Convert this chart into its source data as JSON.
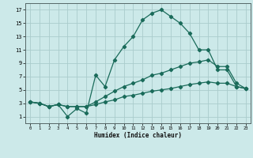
{
  "title": "",
  "xlabel": "Humidex (Indice chaleur)",
  "bg_color": "#cce9e9",
  "grid_color": "#aacccc",
  "line_color": "#1a6b5a",
  "xlim": [
    -0.5,
    23.5
  ],
  "ylim": [
    0,
    18
  ],
  "xticks": [
    0,
    1,
    2,
    3,
    4,
    5,
    6,
    7,
    8,
    9,
    10,
    11,
    12,
    13,
    14,
    15,
    16,
    17,
    18,
    19,
    20,
    21,
    22,
    23
  ],
  "yticks": [
    1,
    3,
    5,
    7,
    9,
    11,
    13,
    15,
    17
  ],
  "lines": [
    {
      "x": [
        0,
        1,
        2,
        3,
        4,
        5,
        6,
        7,
        8,
        9,
        10,
        11,
        12,
        13,
        14,
        15,
        16,
        17,
        18,
        19,
        20,
        21,
        22,
        23
      ],
      "y": [
        3.2,
        3.0,
        2.5,
        2.8,
        1.0,
        2.2,
        1.5,
        7.2,
        5.5,
        9.5,
        11.5,
        13.0,
        15.5,
        16.5,
        17.0,
        16.0,
        15.0,
        13.5,
        11.0,
        11.0,
        8.0,
        8.0,
        5.5,
        5.2
      ]
    },
    {
      "x": [
        0,
        1,
        2,
        3,
        4,
        5,
        6,
        7,
        8,
        9,
        10,
        11,
        12,
        13,
        14,
        15,
        16,
        17,
        18,
        19,
        20,
        21,
        22,
        23
      ],
      "y": [
        3.2,
        3.0,
        2.5,
        2.8,
        2.5,
        2.5,
        2.5,
        3.2,
        4.0,
        4.8,
        5.5,
        6.0,
        6.5,
        7.2,
        7.5,
        8.0,
        8.5,
        9.0,
        9.2,
        9.5,
        8.5,
        8.5,
        6.0,
        5.2
      ]
    },
    {
      "x": [
        0,
        1,
        2,
        3,
        4,
        5,
        6,
        7,
        8,
        9,
        10,
        11,
        12,
        13,
        14,
        15,
        16,
        17,
        18,
        19,
        20,
        21,
        22,
        23
      ],
      "y": [
        3.2,
        3.0,
        2.5,
        2.8,
        2.5,
        2.5,
        2.5,
        2.8,
        3.2,
        3.5,
        4.0,
        4.2,
        4.5,
        4.8,
        5.0,
        5.2,
        5.5,
        5.8,
        6.0,
        6.2,
        6.0,
        6.0,
        5.5,
        5.2
      ]
    }
  ]
}
